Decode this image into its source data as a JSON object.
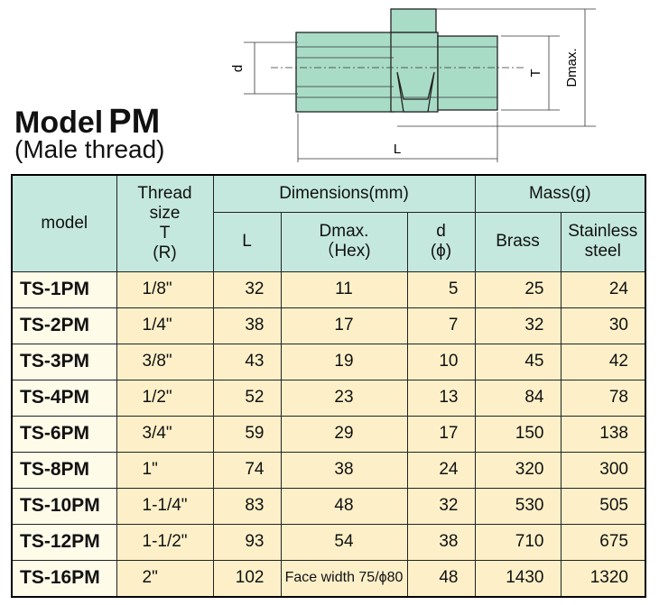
{
  "header": {
    "title_prefix": "Model",
    "title_model": "PM",
    "subtitle": "(Male thread)"
  },
  "diagram": {
    "labels": {
      "d": "d",
      "T": "T",
      "Dmax": "Dmax.",
      "L": "L"
    }
  },
  "table": {
    "header": {
      "model": "model",
      "thread": [
        "Thread",
        "size",
        "T",
        "(R)"
      ],
      "dimensions": "Dimensions(mm)",
      "mass": "Mass(g)",
      "L": "L",
      "dmax": [
        "Dmax.",
        "（Hex)"
      ],
      "d": [
        "d",
        "(ϕ)"
      ],
      "brass": "Brass",
      "stainless": [
        "Stainless",
        "steel"
      ]
    },
    "rows": [
      [
        "TS-1PM",
        "1/8\"",
        32,
        11,
        5,
        25,
        24
      ],
      [
        "TS-2PM",
        "1/4\"",
        38,
        17,
        7,
        32,
        30
      ],
      [
        "TS-3PM",
        "3/8\"",
        43,
        19,
        10,
        45,
        42
      ],
      [
        "TS-4PM",
        "1/2\"",
        52,
        23,
        13,
        84,
        78
      ],
      [
        "TS-6PM",
        "3/4\"",
        59,
        29,
        17,
        150,
        138
      ],
      [
        "TS-8PM",
        "1\"",
        74,
        38,
        24,
        320,
        300
      ],
      [
        "TS-10PM",
        "1-1/4\"",
        83,
        48,
        32,
        530,
        505
      ],
      [
        "TS-12PM",
        "1-1/2\"",
        93,
        54,
        38,
        710,
        675
      ],
      [
        "TS-16PM",
        "2\"",
        102,
        "Face width 75/ϕ80",
        48,
        1430,
        1320
      ]
    ]
  }
}
